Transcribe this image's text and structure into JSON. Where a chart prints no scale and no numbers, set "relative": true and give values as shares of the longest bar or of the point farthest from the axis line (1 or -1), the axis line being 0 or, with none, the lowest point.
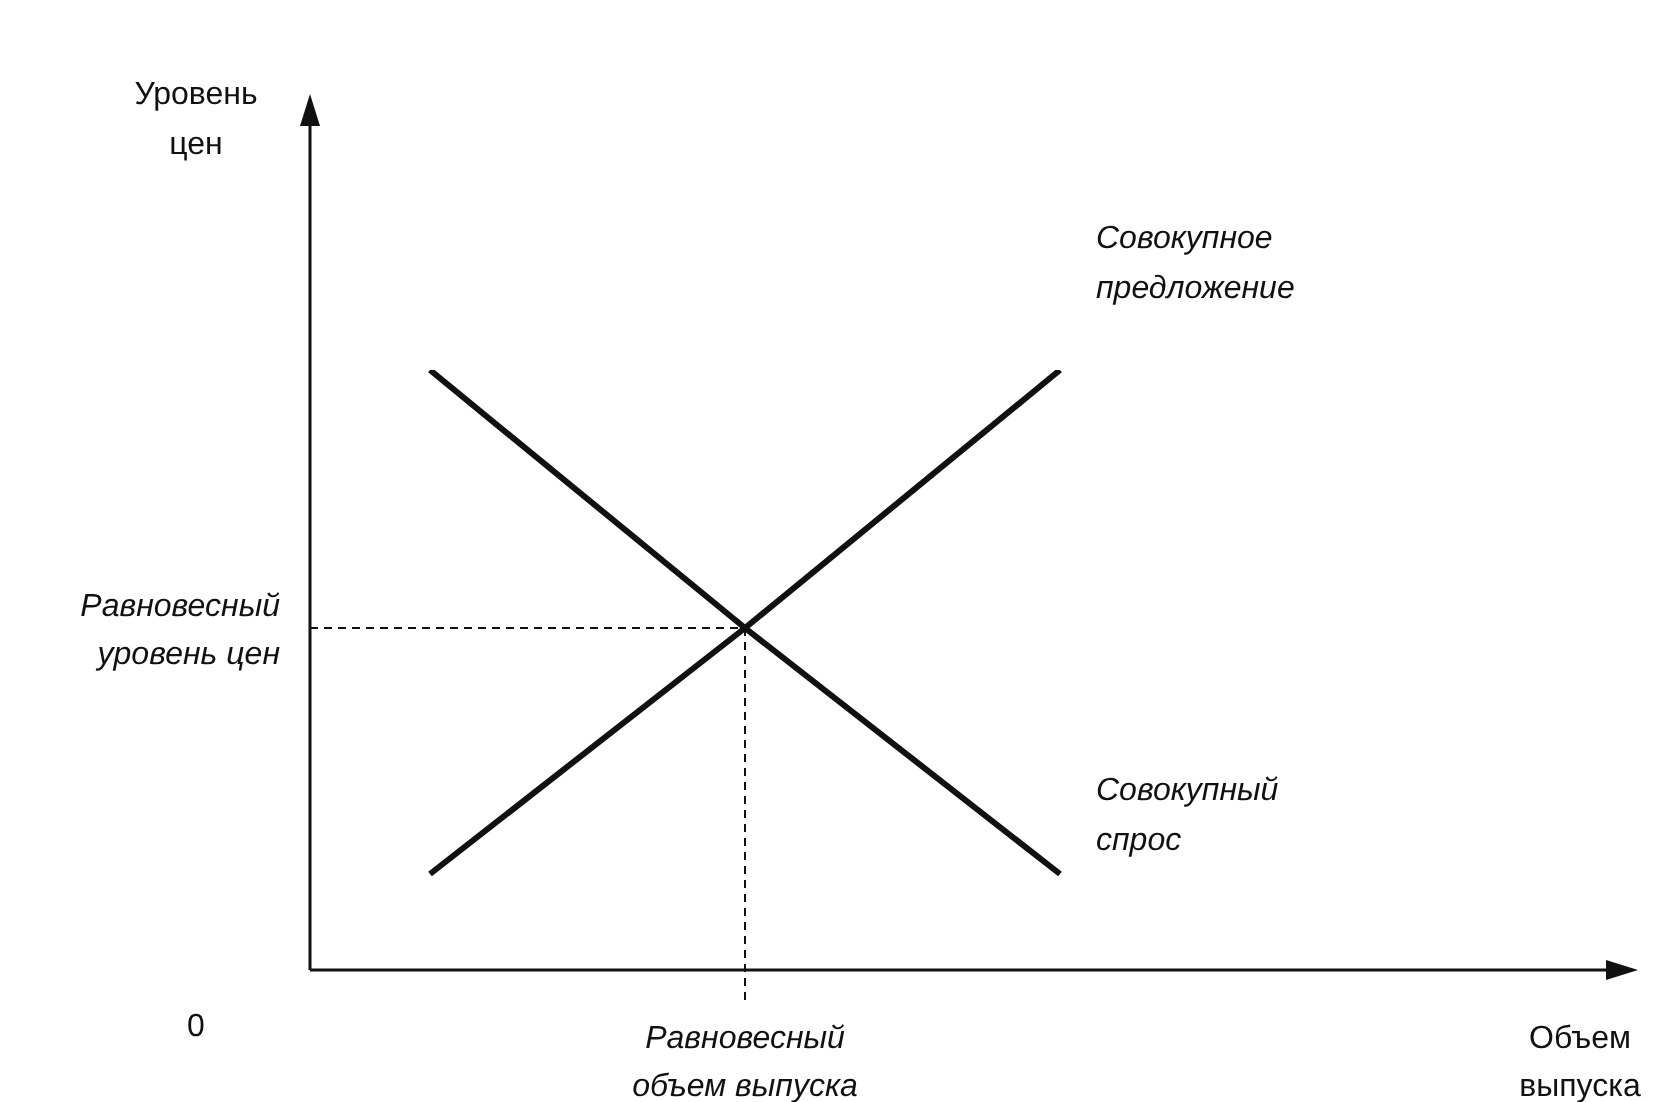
{
  "chart_data": {
    "type": "line",
    "relative": true,
    "categories": [
      null,
      null,
      null
    ],
    "series": [
      {
        "name": "Совокупное предложение",
        "color": "#111111",
        "values": [
          0.16,
          0.57,
          1
        ]
      },
      {
        "name": "Совокупный спрос",
        "color": "#111111",
        "values": [
          1,
          0.57,
          0.16
        ]
      }
    ],
    "ref_lines": [
      {
        "axis": "y",
        "value": 0.57,
        "label": "Равновесный уровень цен",
        "line_style": "dashed"
      },
      {
        "axis": "x",
        "label": "Равновесный объем выпуска",
        "line_style": "dashed"
      }
    ],
    "annotations": [
      "Уровень цен",
      "Объем выпуска",
      "0"
    ],
    "legend": false,
    "marker": "none",
    "line_style": "solid"
  }
}
